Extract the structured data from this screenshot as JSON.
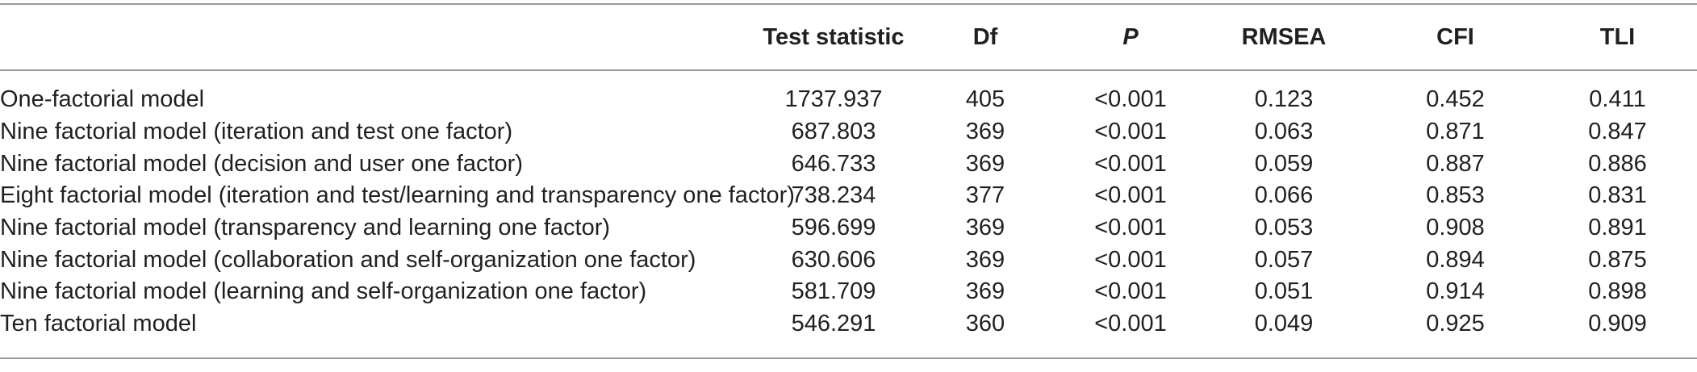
{
  "table": {
    "headers": [
      "",
      "Test statistic",
      "Df",
      "P",
      "RMSEA",
      "CFI",
      "TLI"
    ],
    "rows": [
      [
        "One-factorial model",
        "1737.937",
        "405",
        "<0.001",
        "0.123",
        "0.452",
        "0.411"
      ],
      [
        "Nine factorial model (iteration and test one factor)",
        "687.803",
        "369",
        "<0.001",
        "0.063",
        "0.871",
        "0.847"
      ],
      [
        "Nine factorial model (decision and user one factor)",
        "646.733",
        "369",
        "<0.001",
        "0.059",
        "0.887",
        "0.886"
      ],
      [
        "Eight factorial model (iteration and test/learning and transparency one factor)",
        "738.234",
        "377",
        "<0.001",
        "0.066",
        "0.853",
        "0.831"
      ],
      [
        "Nine factorial model (transparency and learning one factor)",
        "596.699",
        "369",
        "<0.001",
        "0.053",
        "0.908",
        "0.891"
      ],
      [
        "Nine factorial model (collaboration and self-organization one factor)",
        "630.606",
        "369",
        "<0.001",
        "0.057",
        "0.894",
        "0.875"
      ],
      [
        "Nine factorial model (learning and self-organization one factor)",
        "581.709",
        "369",
        "<0.001",
        "0.051",
        "0.914",
        "0.898"
      ],
      [
        "Ten factorial model",
        "546.291",
        "360",
        "<0.001",
        "0.049",
        "0.925",
        "0.909"
      ]
    ]
  }
}
